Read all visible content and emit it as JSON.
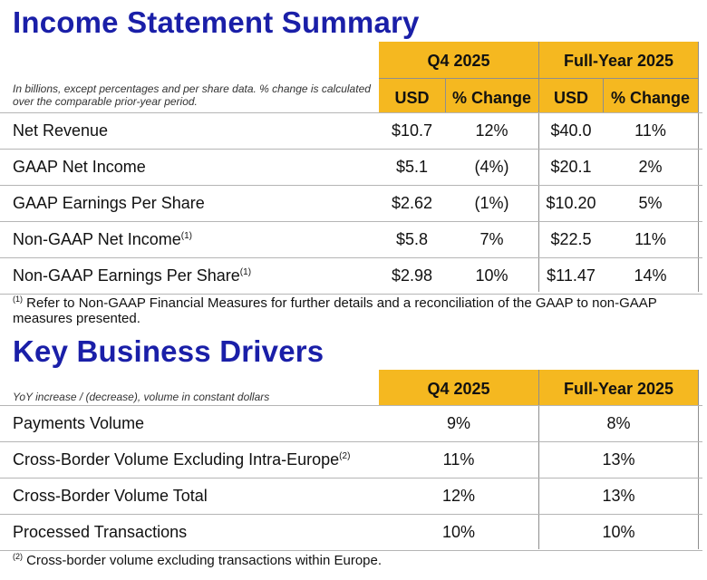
{
  "income": {
    "title": "Income Statement Summary",
    "note": "In billions, except percentages and per share data. % change is calculated over the comparable prior-year period.",
    "period_q4": "Q4 2025",
    "period_fy": "Full-Year 2025",
    "col_usd": "USD",
    "col_change": "% Change",
    "rows": [
      {
        "label": "Net Revenue",
        "sup": "",
        "q4_usd": "$10.7",
        "q4_chg": "12%",
        "fy_usd": "$40.0",
        "fy_chg": "11%"
      },
      {
        "label": "GAAP Net Income",
        "sup": "",
        "q4_usd": "$5.1",
        "q4_chg": "(4%)",
        "fy_usd": "$20.1",
        "fy_chg": "2%"
      },
      {
        "label": "GAAP Earnings Per Share",
        "sup": "",
        "q4_usd": "$2.62",
        "q4_chg": "(1%)",
        "fy_usd": "$10.20",
        "fy_chg": "5%"
      },
      {
        "label": "Non-GAAP Net Income",
        "sup": "(1)",
        "q4_usd": "$5.8",
        "q4_chg": "7%",
        "fy_usd": "$22.5",
        "fy_chg": "11%"
      },
      {
        "label": "Non-GAAP Earnings Per Share",
        "sup": "(1)",
        "q4_usd": "$2.98",
        "q4_chg": "10%",
        "fy_usd": "$11.47",
        "fy_chg": "14%"
      }
    ],
    "footnote_mark": "(1)",
    "footnote": "Refer to Non-GAAP Financial Measures for further details and a reconciliation of the GAAP to non-GAAP measures presented."
  },
  "drivers": {
    "title": "Key Business Drivers",
    "note": "YoY increase / (decrease), volume in constant dollars",
    "period_q4": "Q4 2025",
    "period_fy": "Full-Year 2025",
    "rows": [
      {
        "label": "Payments Volume",
        "sup": "",
        "q4": "9%",
        "fy": "8%"
      },
      {
        "label": "Cross-Border Volume Excluding Intra-Europe",
        "sup": "(2)",
        "q4": "11%",
        "fy": "13%"
      },
      {
        "label": "Cross-Border Volume Total",
        "sup": "",
        "q4": "12%",
        "fy": "13%"
      },
      {
        "label": "Processed Transactions",
        "sup": "",
        "q4": "10%",
        "fy": "10%"
      }
    ],
    "footnote_mark": "(2)",
    "footnote": "Cross-border volume excluding transactions within Europe."
  }
}
